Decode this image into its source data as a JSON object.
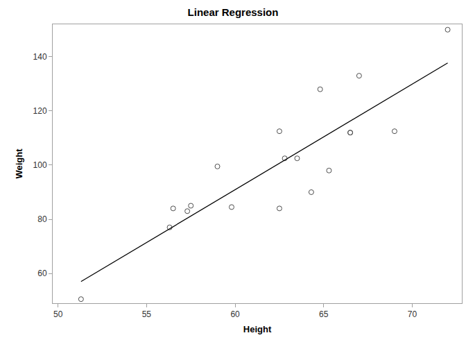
{
  "chart_data": {
    "type": "scatter",
    "title": "Linear Regression",
    "x_label": "Height",
    "y_label": "Weight",
    "series": [
      {
        "type": "scatter",
        "marker": "circle-open",
        "color": "#4d4d4d",
        "x": [
          51.3,
          56.3,
          56.5,
          57.3,
          57.5,
          59.0,
          59.8,
          62.5,
          62.5,
          62.8,
          63.5,
          64.3,
          64.8,
          65.3,
          66.5,
          66.5,
          67.0,
          69.0,
          72.0
        ],
        "values": [
          50.5,
          77.0,
          84.0,
          83.0,
          85.0,
          99.5,
          84.5,
          112.5,
          84.0,
          102.5,
          102.5,
          90.0,
          128.0,
          98.0,
          112.0,
          112.0,
          133.0,
          112.5,
          150.0
        ]
      },
      {
        "type": "line",
        "line_style": "solid",
        "color": "#000000",
        "x": [
          51.3,
          72.0
        ],
        "values": [
          57.0,
          137.7
        ]
      }
    ],
    "xlim": [
      49.7,
      72.8
    ],
    "xticks": [
      50,
      55,
      60,
      65,
      70
    ],
    "ylim": [
      49,
      152
    ],
    "yticks": [
      60,
      80,
      100,
      120,
      140
    ],
    "grid": false
  }
}
